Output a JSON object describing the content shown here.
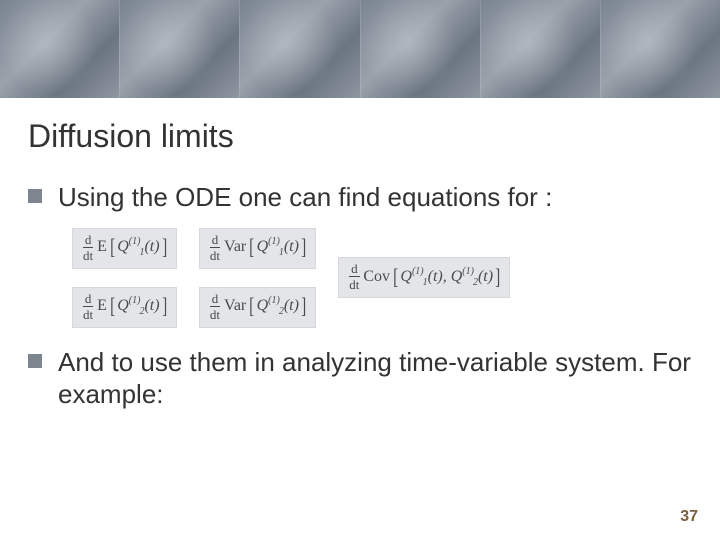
{
  "title": "Diffusion limits",
  "bullets": {
    "b0": "Using the ODE one can find equations for :",
    "b1": "And to use them in analyzing time-variable system. For example:"
  },
  "equations": {
    "colA": {
      "e0": {
        "prefix_num": "d",
        "prefix_den": "dt",
        "fn": "E",
        "inner": "Q",
        "sub": "1",
        "sup": "(1)",
        "arg": "(t)"
      },
      "e1": {
        "prefix_num": "d",
        "prefix_den": "dt",
        "fn": "E",
        "inner": "Q",
        "sub": "2",
        "sup": "(1)",
        "arg": "(t)"
      }
    },
    "colB": {
      "e0": {
        "prefix_num": "d",
        "prefix_den": "dt",
        "fn": "Var",
        "inner": "Q",
        "sub": "1",
        "sup": "(1)",
        "arg": "(t)"
      },
      "e1": {
        "prefix_num": "d",
        "prefix_den": "dt",
        "fn": "Var",
        "inner": "Q",
        "sub": "2",
        "sup": "(1)",
        "arg": "(t)"
      }
    },
    "colC": {
      "e0": {
        "prefix_num": "d",
        "prefix_den": "dt",
        "fn": "Cov",
        "innerA": "Q",
        "subA": "1",
        "supA": "(1)",
        "argA": "(t)",
        "innerB": "Q",
        "subB": "2",
        "supB": "(1)",
        "argB": "(t)"
      }
    }
  },
  "slide_number": "37",
  "colors": {
    "bullet_marker": "#7d868f",
    "eq_bg": "#e3e5e8",
    "text": "#333333",
    "slide_num": "#7a5f3f"
  }
}
